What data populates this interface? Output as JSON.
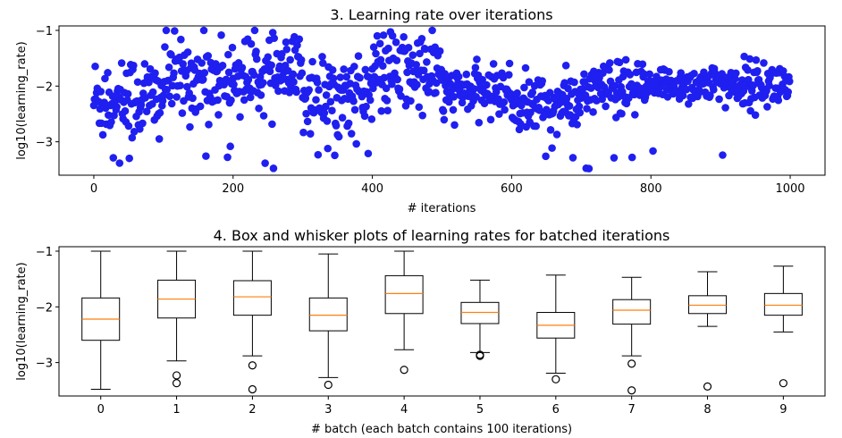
{
  "chart_data": [
    {
      "type": "scatter",
      "title": "3. Learning rate over iterations",
      "xlabel": "# iterations",
      "ylabel": "log10(learning_rate)",
      "xlim": [
        -50,
        1050
      ],
      "ylim": [
        -3.6,
        -0.92
      ],
      "xticks": [
        0,
        200,
        400,
        600,
        800,
        1000
      ],
      "xtick_labels": [
        "0",
        "200",
        "400",
        "600",
        "800",
        "1000"
      ],
      "yticks": [
        -1,
        -2,
        -3
      ],
      "ytick_labels": [
        "−1",
        "−2",
        "−3"
      ],
      "point_color": "#1f1ff0",
      "n_points": 1000,
      "batch_profiles": [
        {
          "batch": 0,
          "center": -2.22,
          "spread": 0.55,
          "min": -3.48,
          "max": -1.0
        },
        {
          "batch": 1,
          "center": -1.86,
          "spread": 0.48,
          "min": -3.37,
          "max": -1.0
        },
        {
          "batch": 2,
          "center": -1.82,
          "spread": 0.45,
          "min": -3.48,
          "max": -1.0
        },
        {
          "batch": 3,
          "center": -2.15,
          "spread": 0.45,
          "min": -3.4,
          "max": -1.05
        },
        {
          "batch": 4,
          "center": -1.76,
          "spread": 0.5,
          "min": -3.13,
          "max": -1.0
        },
        {
          "batch": 5,
          "center": -2.1,
          "spread": 0.28,
          "min": -2.88,
          "max": -1.52
        },
        {
          "batch": 6,
          "center": -2.33,
          "spread": 0.35,
          "min": -3.3,
          "max": -1.43
        },
        {
          "batch": 7,
          "center": -2.06,
          "spread": 0.32,
          "min": -3.5,
          "max": -1.47
        },
        {
          "batch": 8,
          "center": -1.97,
          "spread": 0.22,
          "min": -3.43,
          "max": -1.37
        },
        {
          "batch": 9,
          "center": -1.97,
          "spread": 0.28,
          "min": -3.37,
          "max": -1.27
        }
      ]
    },
    {
      "type": "box",
      "title": "4. Box and whisker plots of learning rates for batched iterations",
      "xlabel": "# batch (each batch contains 100 iterations)",
      "ylabel": "log10(learning_rate)",
      "categories": [
        "0",
        "1",
        "2",
        "3",
        "4",
        "5",
        "6",
        "7",
        "8",
        "9"
      ],
      "ylim": [
        -3.6,
        -0.92
      ],
      "yticks": [
        -1,
        -2,
        -3
      ],
      "ytick_labels": [
        "−1",
        "−2",
        "−3"
      ],
      "median_color": "#ff7f0e",
      "boxes": [
        {
          "label": "0",
          "whisker_low": -3.48,
          "q1": -2.6,
          "median": -2.22,
          "q3": -1.84,
          "whisker_high": -1.0,
          "outliers": []
        },
        {
          "label": "1",
          "whisker_low": -2.97,
          "q1": -2.2,
          "median": -1.86,
          "q3": -1.52,
          "whisker_high": -1.0,
          "outliers": [
            -3.23,
            -3.37
          ]
        },
        {
          "label": "2",
          "whisker_low": -2.88,
          "q1": -2.15,
          "median": -1.82,
          "q3": -1.53,
          "whisker_high": -1.0,
          "outliers": [
            -3.05,
            -3.48
          ]
        },
        {
          "label": "3",
          "whisker_low": -3.27,
          "q1": -2.43,
          "median": -2.15,
          "q3": -1.84,
          "whisker_high": -1.05,
          "outliers": [
            -3.4
          ]
        },
        {
          "label": "4",
          "whisker_low": -2.77,
          "q1": -2.12,
          "median": -1.76,
          "q3": -1.44,
          "whisker_high": -1.0,
          "outliers": [
            -3.13
          ]
        },
        {
          "label": "5",
          "whisker_low": -2.82,
          "q1": -2.3,
          "median": -2.1,
          "q3": -1.92,
          "whisker_high": -1.52,
          "outliers": [
            -2.86,
            -2.88
          ]
        },
        {
          "label": "6",
          "whisker_low": -3.19,
          "q1": -2.56,
          "median": -2.33,
          "q3": -2.1,
          "whisker_high": -1.43,
          "outliers": [
            -3.3
          ]
        },
        {
          "label": "7",
          "whisker_low": -2.88,
          "q1": -2.31,
          "median": -2.06,
          "q3": -1.87,
          "whisker_high": -1.47,
          "outliers": [
            -3.02,
            -3.5
          ]
        },
        {
          "label": "8",
          "whisker_low": -2.35,
          "q1": -2.12,
          "median": -1.97,
          "q3": -1.8,
          "whisker_high": -1.37,
          "outliers": [
            -3.43
          ]
        },
        {
          "label": "9",
          "whisker_low": -2.45,
          "q1": -2.15,
          "median": -1.97,
          "q3": -1.76,
          "whisker_high": -1.27,
          "outliers": [
            -3.37
          ]
        }
      ]
    }
  ]
}
